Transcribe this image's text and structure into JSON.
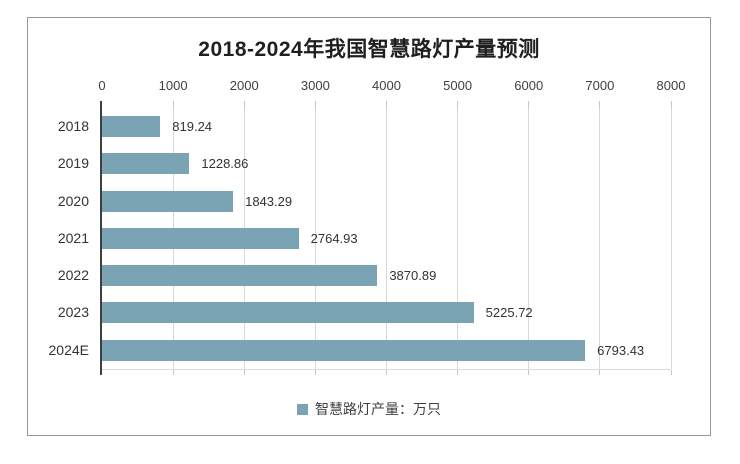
{
  "chart_data": {
    "type": "bar",
    "orientation": "horizontal",
    "title": "2018-2024年我国智慧路灯产量预测",
    "categories": [
      "2018",
      "2019",
      "2020",
      "2021",
      "2022",
      "2023",
      "2024E"
    ],
    "series": [
      {
        "name": "智慧路灯产量：万只",
        "values": [
          819.24,
          1228.86,
          1843.29,
          2764.93,
          3870.89,
          5225.72,
          6793.43
        ]
      }
    ],
    "value_axis": {
      "position": "top",
      "min": 0,
      "max": 8000,
      "tick_interval": 1000,
      "tick_labels": [
        "0",
        "1000",
        "2000",
        "3000",
        "4000",
        "5000",
        "6000",
        "7000",
        "8000"
      ]
    },
    "legend": {
      "position": "bottom",
      "label": "智慧路灯产量：万只"
    },
    "grid": true,
    "colors": {
      "bar": "#7aa3b4",
      "gridline": "#d9d9d9",
      "tick": "#c6c6c6",
      "axis_line": "#3f3f3f",
      "title_text": "#1f1f1f",
      "label_text": "#404040",
      "panel_border": "#969696"
    }
  }
}
